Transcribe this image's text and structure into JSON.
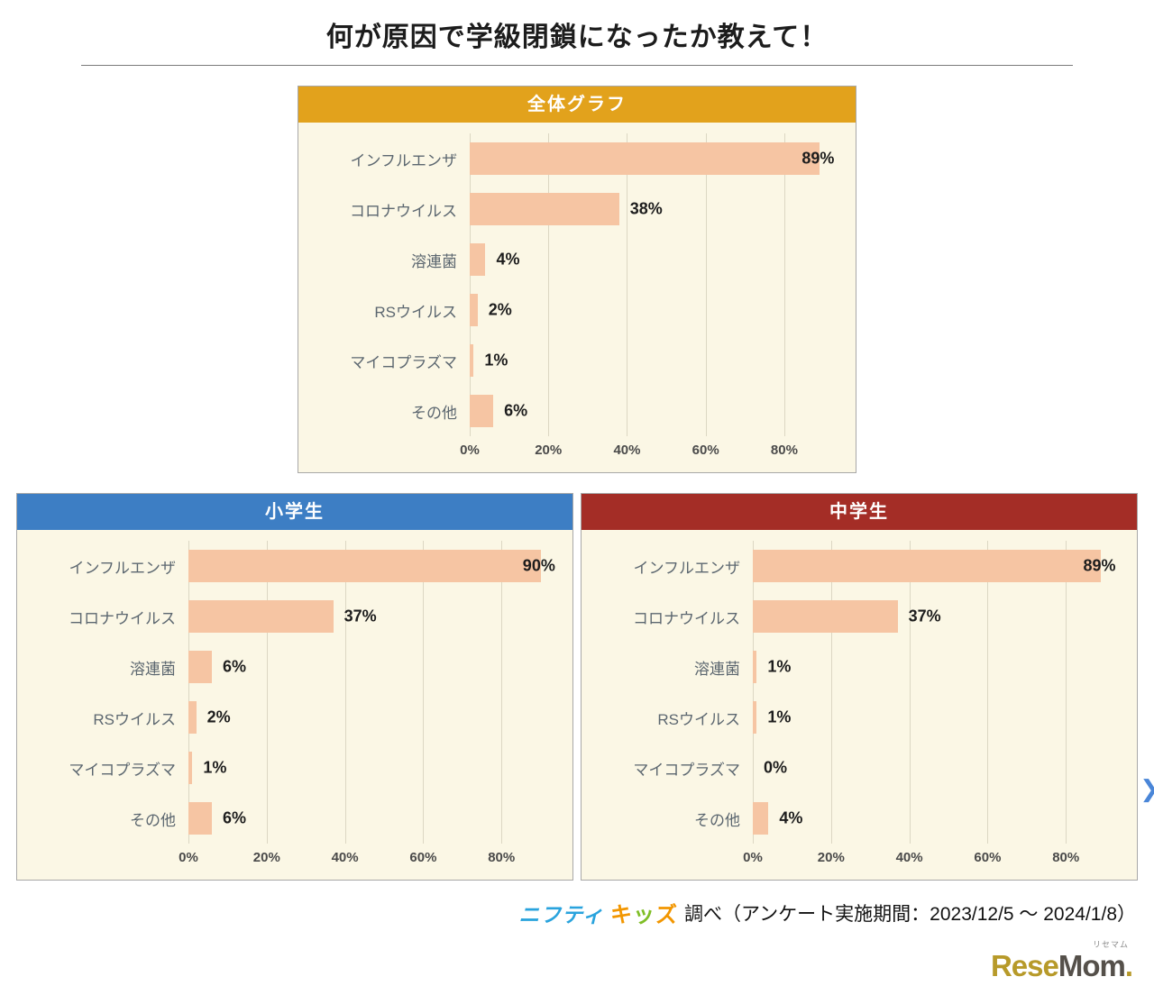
{
  "page_title": "何が原因で学級閉鎖になったか教えて！",
  "chart_data": [
    {
      "type": "bar",
      "orientation": "horizontal",
      "title": "全体グラフ",
      "header_color": "#E2A21C",
      "categories": [
        "インフルエンザ",
        "コロナウイルス",
        "溶連菌",
        "RSウイルス",
        "マイコプラズマ",
        "その他"
      ],
      "values": [
        89,
        38,
        4,
        2,
        1,
        6
      ],
      "value_labels": [
        "89%",
        "38%",
        "4%",
        "2%",
        "1%",
        "6%"
      ],
      "x_ticks": [
        0,
        20,
        40,
        60,
        80
      ],
      "x_tick_labels": [
        "0%",
        "20%",
        "40%",
        "60%",
        "80%"
      ],
      "xlim": [
        0,
        94
      ],
      "grid": true,
      "legend": "none",
      "bar_color": "#F6C5A3",
      "panel_color": "#FBF7E5"
    },
    {
      "type": "bar",
      "orientation": "horizontal",
      "title": "小学生",
      "header_color": "#3D7EC4",
      "categories": [
        "インフルエンザ",
        "コロナウイルス",
        "溶連菌",
        "RSウイルス",
        "マイコプラズマ",
        "その他"
      ],
      "values": [
        90,
        37,
        6,
        2,
        1,
        6
      ],
      "value_labels": [
        "90%",
        "37%",
        "6%",
        "2%",
        "1%",
        "6%"
      ],
      "x_ticks": [
        0,
        20,
        40,
        60,
        80
      ],
      "x_tick_labels": [
        "0%",
        "20%",
        "40%",
        "60%",
        "80%"
      ],
      "xlim": [
        0,
        94
      ],
      "grid": true,
      "legend": "none",
      "bar_color": "#F6C5A3",
      "panel_color": "#FBF7E5"
    },
    {
      "type": "bar",
      "orientation": "horizontal",
      "title": "中学生",
      "header_color": "#A42D26",
      "categories": [
        "インフルエンザ",
        "コロナウイルス",
        "溶連菌",
        "RSウイルス",
        "マイコプラズマ",
        "その他"
      ],
      "values": [
        89,
        37,
        1,
        1,
        0,
        4
      ],
      "value_labels": [
        "89%",
        "37%",
        "1%",
        "1%",
        "0%",
        "4%"
      ],
      "x_ticks": [
        0,
        20,
        40,
        60,
        80
      ],
      "x_tick_labels": [
        "0%",
        "20%",
        "40%",
        "60%",
        "80%"
      ],
      "xlim": [
        0,
        94
      ],
      "grid": true,
      "legend": "none",
      "bar_color": "#F6C5A3",
      "panel_color": "#FBF7E5"
    }
  ],
  "footer": {
    "nifty": "ニフティ",
    "kids_chars": [
      {
        "ch": "キ",
        "color": "#F29600"
      },
      {
        "ch": "ッ",
        "color": "#7FBE26"
      },
      {
        "ch": "ズ",
        "color": "#F29600"
      }
    ],
    "text": "調べ（アンケート実施期間：2023/12/5 ～ 2024/1/8）"
  },
  "branding": {
    "part1": "Rese",
    "part2": "Mom",
    "dot": ".",
    "ruby": "リセマム"
  },
  "icons": {
    "edge_chevron": "❯"
  },
  "colors": {
    "nifty_blue": "#29A3DD",
    "resemom_gold": "#B79A2A",
    "resemom_dark": "#55504A",
    "chevron_blue": "#4A86D8"
  }
}
